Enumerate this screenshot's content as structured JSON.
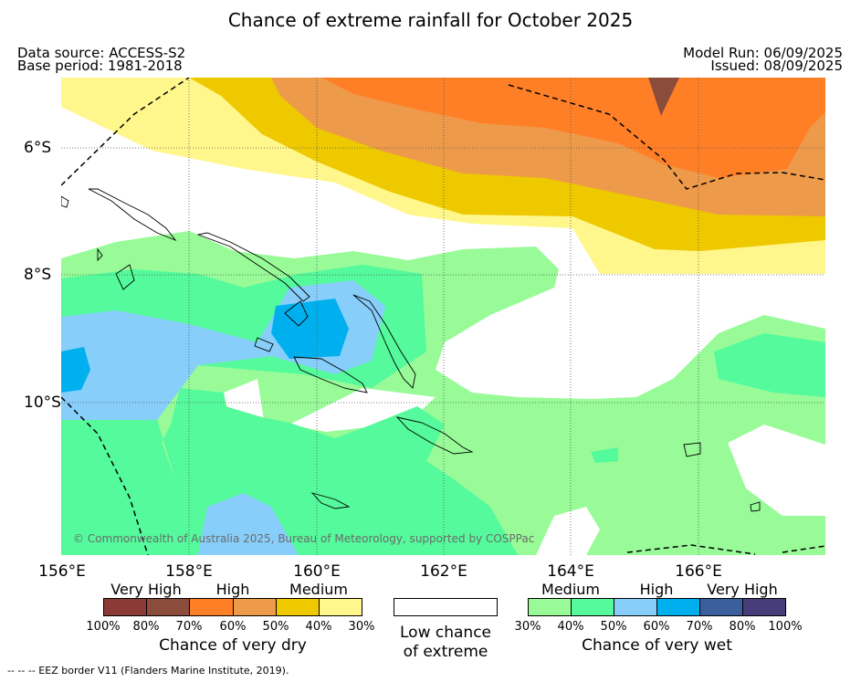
{
  "title": "Chance of extreme rainfall for October 2025",
  "header": {
    "data_source": "Data source: ACCESS-S2",
    "base_period": "Base period: 1981-2018",
    "model_run": "Model Run: 06/09/2025",
    "issued": "Issued: 08/09/2025"
  },
  "map": {
    "lon_labels": [
      "156°E",
      "158°E",
      "160°E",
      "162°E",
      "164°E",
      "166°E"
    ],
    "lat_labels": [
      "6°S",
      "8°S",
      "10°S"
    ],
    "copyright": "© Commonwealth of Australia 2025, Bureau of Meteorology, supported by COSPPac"
  },
  "legend": {
    "dry": {
      "category_labels": [
        "Very High",
        "High",
        "Medium"
      ],
      "colors": [
        "#8b3a36",
        "#8b4c3c",
        "#ff7f27",
        "#ee9a4b",
        "#eec900",
        "#fff78c"
      ],
      "ticks": [
        "100%",
        "80%",
        "70%",
        "60%",
        "50%",
        "40%",
        "30%"
      ],
      "caption": "Chance of very dry"
    },
    "low": {
      "color": "#ffffff",
      "caption_line1": "Low chance",
      "caption_line2": "of extreme"
    },
    "wet": {
      "category_labels": [
        "Medium",
        "High",
        "Very High"
      ],
      "colors": [
        "#98fb98",
        "#54fa9b",
        "#87cefa",
        "#00b0ee",
        "#3a5f9c",
        "#483d7b"
      ],
      "ticks": [
        "30%",
        "40%",
        "50%",
        "60%",
        "70%",
        "80%",
        "100%"
      ],
      "caption": "Chance of very wet"
    }
  },
  "footnote": "--  --  -- EEZ border V11 (Flanders Marine Institute, 2019)."
}
